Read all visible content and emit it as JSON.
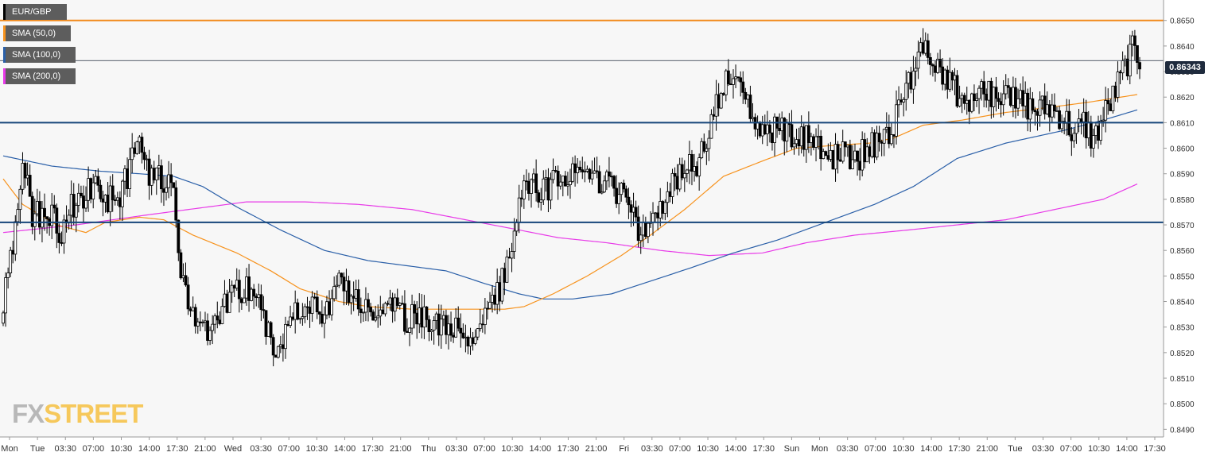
{
  "legend": {
    "pair": "EUR/GBP",
    "sma50": "SMA (50,0)",
    "sma100": "SMA (100,0)",
    "sma200": "SMA (200,0)"
  },
  "current_price_label": "0.86343",
  "logo": {
    "part1": "FX",
    "part2": "STREET"
  },
  "colors": {
    "plot_background": "#f7f7f7",
    "sma50": "#f7931e",
    "sma100": "#2a5fa8",
    "sma200": "#e83ae8",
    "support_resistance": "#16467a",
    "resistance_top": "#f28a1b",
    "candle_up": "#ffffff",
    "candle_down": "#000000",
    "legend_bg": "#5d5d5d"
  },
  "chart_data": {
    "type": "candlestick",
    "instrument": "EUR/GBP",
    "y_axis": {
      "ylim": [
        0.8487,
        0.8658
      ],
      "ticks": [
        0.849,
        0.85,
        0.851,
        0.852,
        0.853,
        0.854,
        0.855,
        0.856,
        0.857,
        0.858,
        0.859,
        0.86,
        0.861,
        0.862,
        0.863,
        0.864,
        0.865
      ],
      "position": "right"
    },
    "x_axis": {
      "tick_labels": [
        "Mon",
        "Tue",
        "03:30",
        "07:00",
        "10:30",
        "14:00",
        "17:30",
        "21:00",
        "Wed",
        "03:30",
        "07:00",
        "10:30",
        "14:00",
        "17:30",
        "21:00",
        "Thu",
        "03:30",
        "07:00",
        "10:30",
        "14:00",
        "17:30",
        "21:00",
        "Fri",
        "03:30",
        "07:00",
        "10:30",
        "14:00",
        "17:30",
        "Sun",
        "Mon",
        "03:30",
        "07:00",
        "10:30",
        "14:00",
        "17:30",
        "21:00",
        "Tue",
        "03:30",
        "07:00",
        "10:30",
        "14:00",
        "17:30"
      ]
    },
    "horizontal_levels": [
      {
        "value": 0.865,
        "color": "resistance_top"
      },
      {
        "value": 0.86343,
        "color": "current_price"
      },
      {
        "value": 0.861,
        "color": "support_resistance"
      },
      {
        "value": 0.8571,
        "color": "support_resistance"
      }
    ],
    "close_anchors": [
      [
        0,
        0.854
      ],
      [
        4,
        0.856
      ],
      [
        8,
        0.8595
      ],
      [
        12,
        0.8575
      ],
      [
        18,
        0.8574
      ],
      [
        24,
        0.8568
      ],
      [
        30,
        0.858
      ],
      [
        36,
        0.8585
      ],
      [
        42,
        0.858
      ],
      [
        48,
        0.858
      ],
      [
        54,
        0.86
      ],
      [
        56,
        0.86
      ],
      [
        60,
        0.859
      ],
      [
        66,
        0.8588
      ],
      [
        70,
        0.858
      ],
      [
        72,
        0.856
      ],
      [
        76,
        0.854
      ],
      [
        80,
        0.8532
      ],
      [
        86,
        0.853
      ],
      [
        92,
        0.854
      ],
      [
        98,
        0.8545
      ],
      [
        104,
        0.8544
      ],
      [
        108,
        0.8532
      ],
      [
        111,
        0.8518
      ],
      [
        114,
        0.8525
      ],
      [
        120,
        0.8538
      ],
      [
        126,
        0.854
      ],
      [
        132,
        0.8535
      ],
      [
        138,
        0.8548
      ],
      [
        144,
        0.854
      ],
      [
        150,
        0.8535
      ],
      [
        156,
        0.8538
      ],
      [
        162,
        0.8535
      ],
      [
        168,
        0.8533
      ],
      [
        174,
        0.8532
      ],
      [
        180,
        0.853
      ],
      [
        186,
        0.8528
      ],
      [
        190,
        0.8525
      ],
      [
        194,
        0.8528
      ],
      [
        198,
        0.8533
      ],
      [
        204,
        0.8545
      ],
      [
        208,
        0.856
      ],
      [
        212,
        0.8577
      ],
      [
        216,
        0.8588
      ],
      [
        222,
        0.8582
      ],
      [
        228,
        0.859
      ],
      [
        234,
        0.8588
      ],
      [
        240,
        0.8588
      ],
      [
        246,
        0.8586
      ],
      [
        252,
        0.8584
      ],
      [
        258,
        0.8578
      ],
      [
        262,
        0.8566
      ],
      [
        266,
        0.8572
      ],
      [
        272,
        0.858
      ],
      [
        278,
        0.859
      ],
      [
        284,
        0.8593
      ],
      [
        288,
        0.8598
      ],
      [
        292,
        0.8615
      ],
      [
        296,
        0.8625
      ],
      [
        300,
        0.863
      ],
      [
        304,
        0.862
      ],
      [
        308,
        0.8612
      ],
      [
        312,
        0.8605
      ],
      [
        318,
        0.8607
      ],
      [
        324,
        0.8604
      ],
      [
        330,
        0.8605
      ],
      [
        336,
        0.86
      ],
      [
        342,
        0.8597
      ],
      [
        348,
        0.8596
      ],
      [
        354,
        0.8598
      ],
      [
        360,
        0.8603
      ],
      [
        366,
        0.861
      ],
      [
        370,
        0.862
      ],
      [
        374,
        0.863
      ],
      [
        378,
        0.8643
      ],
      [
        382,
        0.8635
      ],
      [
        388,
        0.8628
      ],
      [
        394,
        0.8618
      ],
      [
        400,
        0.862
      ],
      [
        406,
        0.8622
      ],
      [
        412,
        0.862
      ],
      [
        418,
        0.8618
      ],
      [
        424,
        0.8615
      ],
      [
        430,
        0.8616
      ],
      [
        436,
        0.8612
      ],
      [
        440,
        0.8605
      ],
      [
        444,
        0.861
      ],
      [
        448,
        0.8603
      ],
      [
        452,
        0.8612
      ],
      [
        456,
        0.862
      ],
      [
        460,
        0.863
      ],
      [
        464,
        0.8638
      ],
      [
        467,
        0.8635
      ]
    ],
    "sma50_path": [
      [
        0,
        0.8588
      ],
      [
        8,
        0.8578
      ],
      [
        22,
        0.857
      ],
      [
        34,
        0.8567
      ],
      [
        42,
        0.8571
      ],
      [
        56,
        0.8573
      ],
      [
        66,
        0.8572
      ],
      [
        78,
        0.8566
      ],
      [
        96,
        0.8559
      ],
      [
        110,
        0.8552
      ],
      [
        122,
        0.8545
      ],
      [
        138,
        0.854
      ],
      [
        150,
        0.8538
      ],
      [
        168,
        0.8537
      ],
      [
        184,
        0.8537
      ],
      [
        196,
        0.8537
      ],
      [
        206,
        0.8537
      ],
      [
        214,
        0.8538
      ],
      [
        226,
        0.8543
      ],
      [
        240,
        0.855
      ],
      [
        254,
        0.8558
      ],
      [
        266,
        0.8566
      ],
      [
        280,
        0.8576
      ],
      [
        296,
        0.8589
      ],
      [
        312,
        0.8595
      ],
      [
        326,
        0.86
      ],
      [
        340,
        0.8601
      ],
      [
        356,
        0.8602
      ],
      [
        366,
        0.8604
      ],
      [
        378,
        0.8609
      ],
      [
        394,
        0.8611
      ],
      [
        412,
        0.8614
      ],
      [
        430,
        0.8616
      ],
      [
        446,
        0.8618
      ],
      [
        466,
        0.8621
      ]
    ],
    "sma100_path": [
      [
        0,
        0.8597
      ],
      [
        20,
        0.8593
      ],
      [
        40,
        0.8591
      ],
      [
        56,
        0.859
      ],
      [
        70,
        0.8589
      ],
      [
        82,
        0.8585
      ],
      [
        96,
        0.8577
      ],
      [
        114,
        0.8568
      ],
      [
        132,
        0.856
      ],
      [
        150,
        0.8556
      ],
      [
        166,
        0.8554
      ],
      [
        182,
        0.8552
      ],
      [
        198,
        0.8547
      ],
      [
        212,
        0.8543
      ],
      [
        222,
        0.8541
      ],
      [
        234,
        0.8541
      ],
      [
        250,
        0.8543
      ],
      [
        266,
        0.8548
      ],
      [
        282,
        0.8553
      ],
      [
        300,
        0.8559
      ],
      [
        318,
        0.8564
      ],
      [
        338,
        0.8571
      ],
      [
        358,
        0.8578
      ],
      [
        374,
        0.8585
      ],
      [
        392,
        0.8596
      ],
      [
        412,
        0.8602
      ],
      [
        436,
        0.8607
      ],
      [
        452,
        0.8611
      ],
      [
        466,
        0.8615
      ]
    ],
    "sma200_path": [
      [
        0,
        0.8567
      ],
      [
        30,
        0.857
      ],
      [
        60,
        0.8574
      ],
      [
        84,
        0.8577
      ],
      [
        100,
        0.8579
      ],
      [
        124,
        0.8579
      ],
      [
        146,
        0.8578
      ],
      [
        168,
        0.8576
      ],
      [
        190,
        0.8572
      ],
      [
        212,
        0.8568
      ],
      [
        228,
        0.8565
      ],
      [
        248,
        0.8563
      ],
      [
        270,
        0.856
      ],
      [
        290,
        0.8558
      ],
      [
        312,
        0.8559
      ],
      [
        330,
        0.8563
      ],
      [
        350,
        0.8566
      ],
      [
        372,
        0.8568
      ],
      [
        392,
        0.857
      ],
      [
        412,
        0.8572
      ],
      [
        432,
        0.8576
      ],
      [
        452,
        0.858
      ],
      [
        466,
        0.8586
      ]
    ],
    "candle_count": 468
  }
}
